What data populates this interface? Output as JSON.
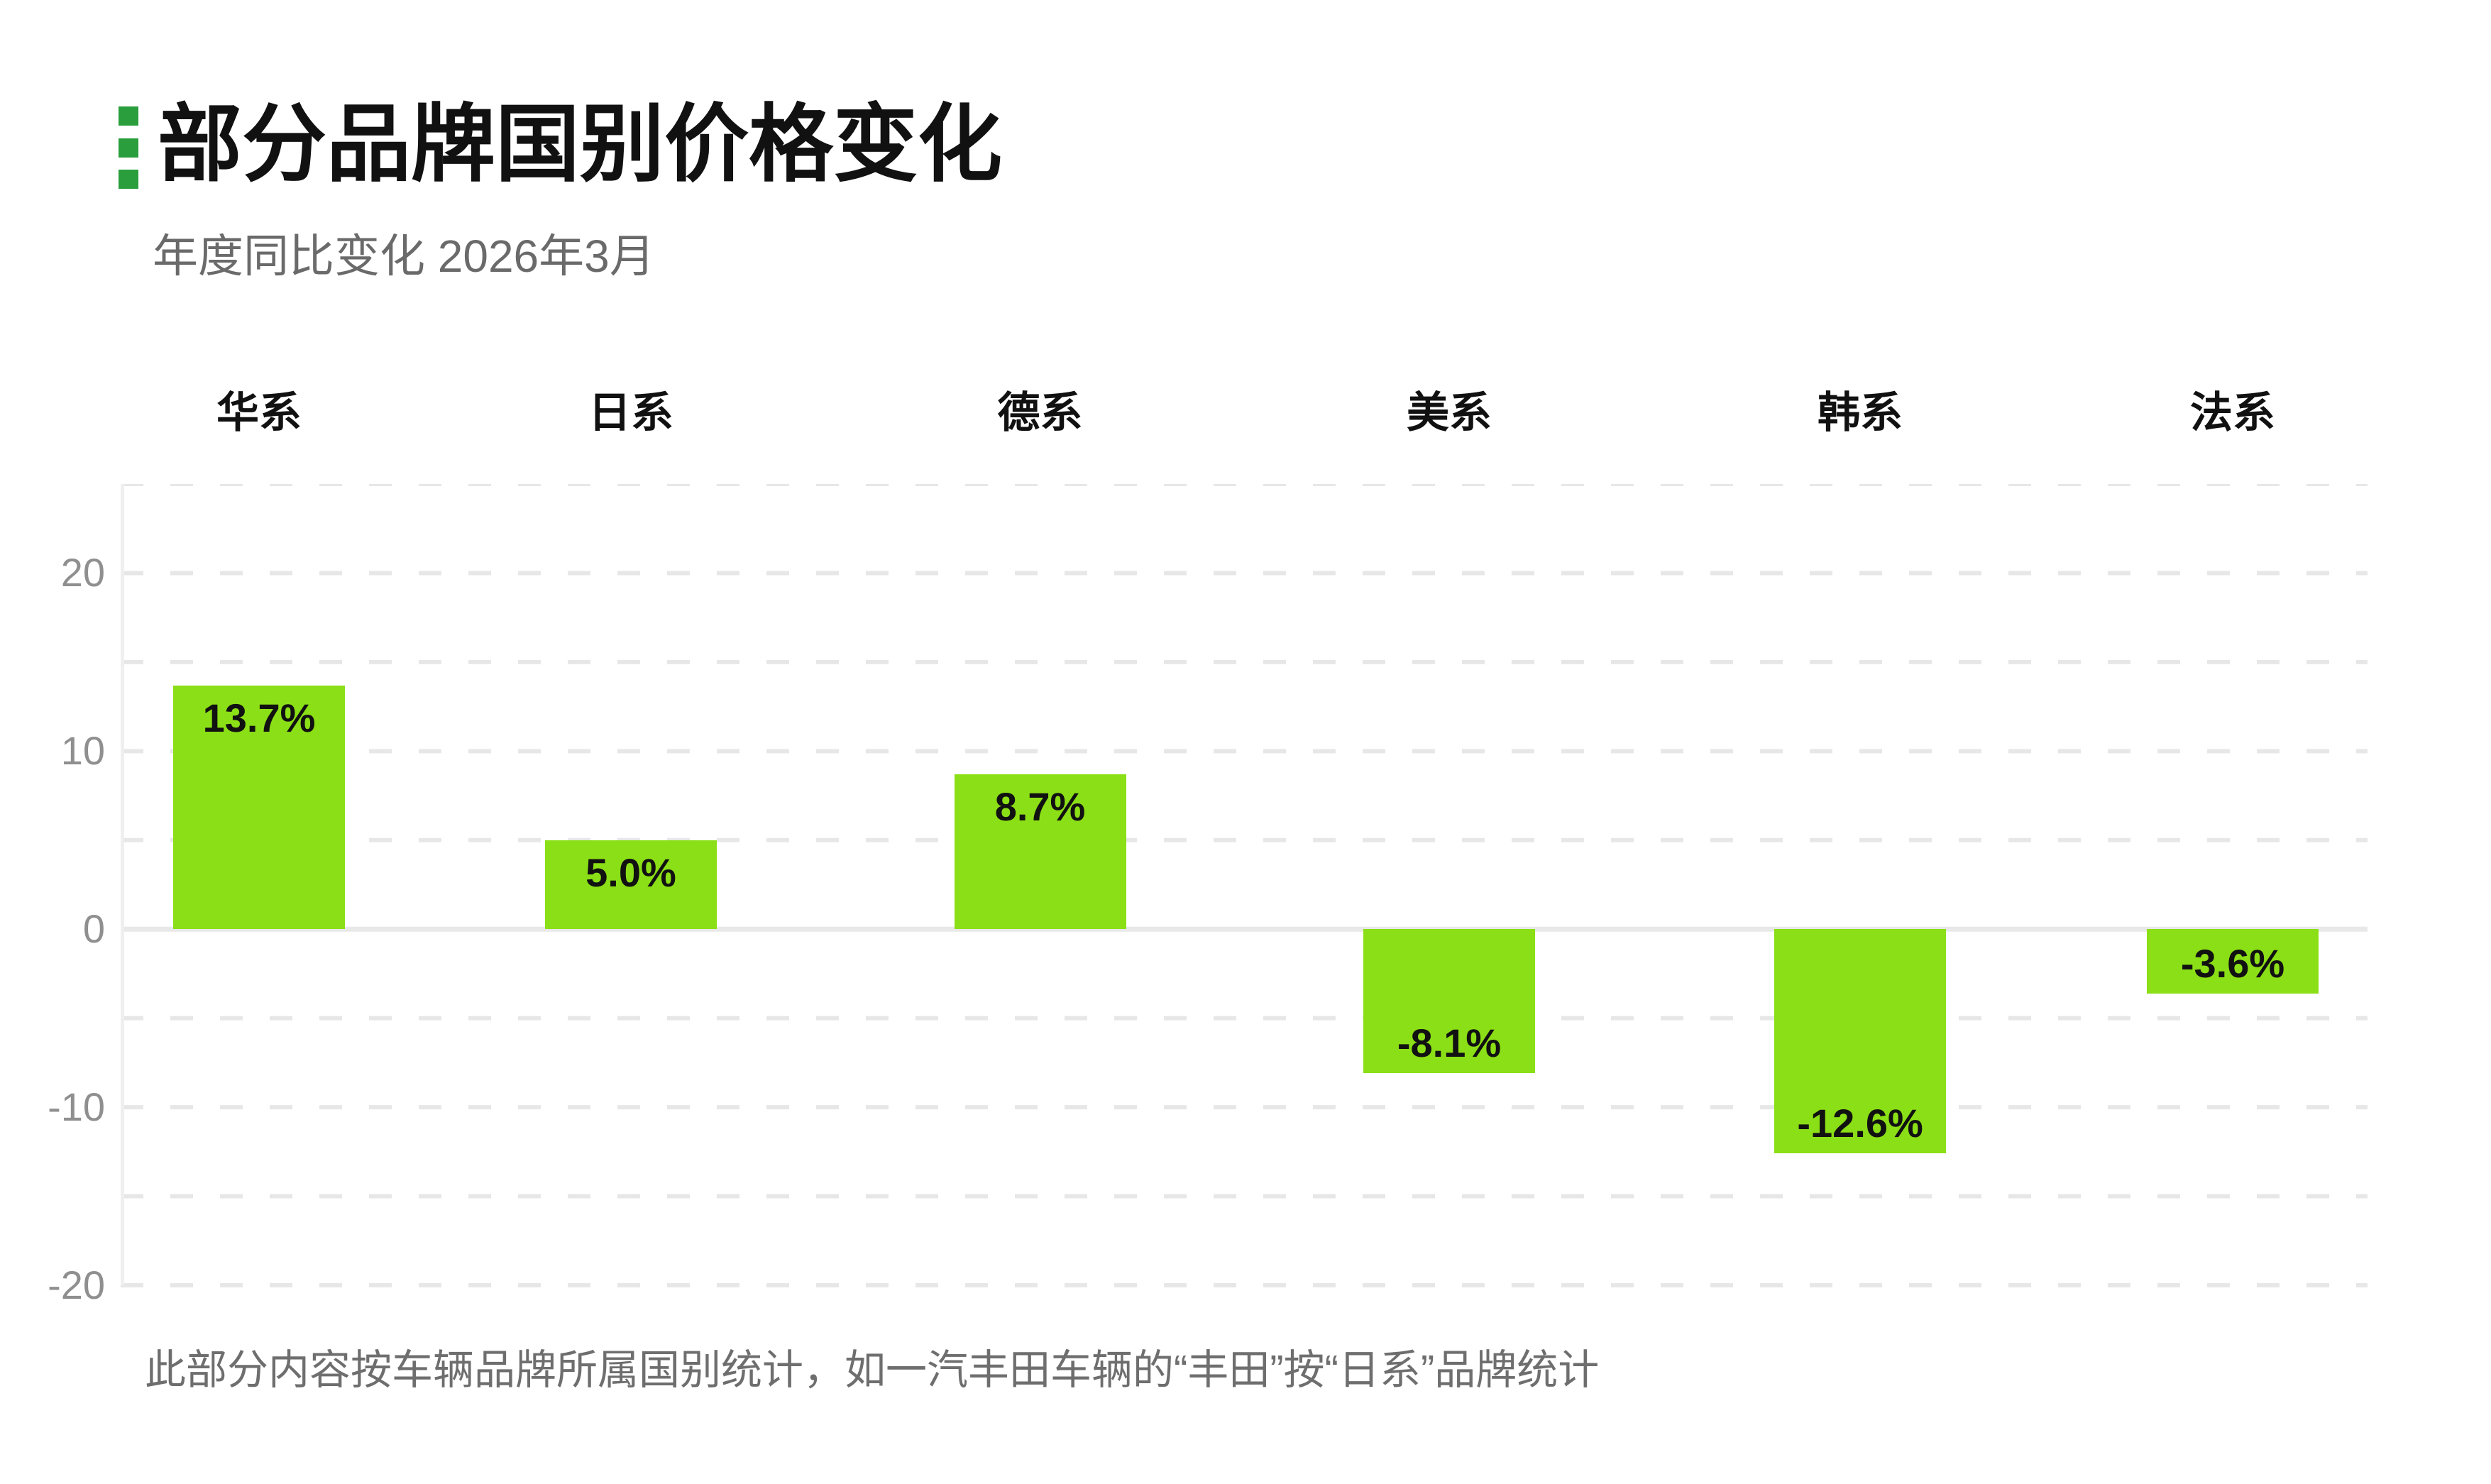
{
  "header": {
    "title": "部分品牌国别价格变化",
    "subtitle": "年度同比变化 2026年3月"
  },
  "accent": {
    "color": "#2a9e3d"
  },
  "chart_data": {
    "type": "bar",
    "title": "部分品牌国别价格变化",
    "subtitle": "年度同比变化 2026年3月",
    "categories": [
      "华系",
      "日系",
      "德系",
      "美系",
      "韩系",
      "法系"
    ],
    "values": [
      13.7,
      5.0,
      8.7,
      -8.1,
      -12.6,
      -3.6
    ],
    "value_labels": [
      "13.7%",
      "5.0%",
      "8.7%",
      "-8.1%",
      "-12.6%",
      "-3.6%"
    ],
    "unit": "percent",
    "ylim": [
      -20,
      25
    ],
    "yticks": [
      20,
      10,
      0,
      -10,
      -20
    ],
    "ytick_labels": [
      "20",
      "10",
      "0",
      "-10",
      "-20"
    ],
    "gridlines_every": 5,
    "grid_style": "horizontal dashed lines every 5 units, solid light zero line, no x gridlines",
    "legend": "none",
    "value_label_position": "inside bar, near top for positive, near bottom for negative",
    "colors": {
      "bar": "#8bdf16",
      "value_label": "#111111",
      "category_label": "#111111",
      "axis_text": "#8f8f8f",
      "gridline": "#e7e7e7",
      "zero_line": "#e8e8e8",
      "axis_line": "#efefef"
    }
  },
  "footnote": "此部分内容按车辆品牌所属国别统计，如一汽丰田车辆的“丰田”按“日系”品牌统计"
}
